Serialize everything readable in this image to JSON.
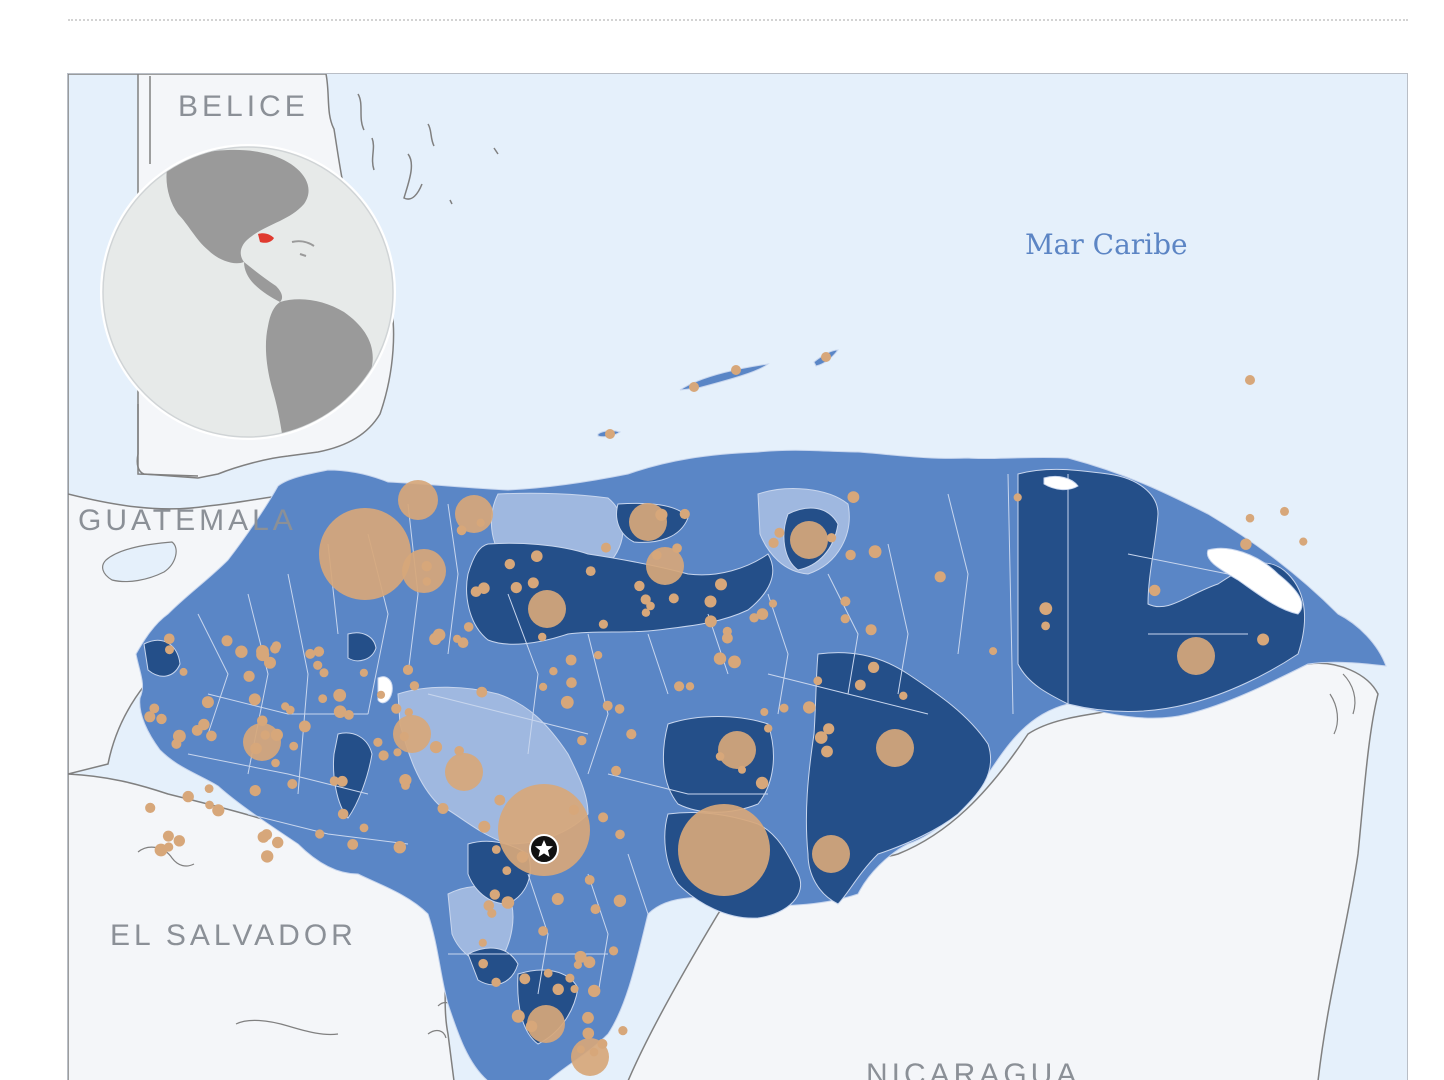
{
  "labels": {
    "belice": "BELICE",
    "guatemala": "GUATEMALA",
    "el_salvador": "EL SALVADOR",
    "nicaragua": "NICARAGUA",
    "sea": "Mar Caribe"
  },
  "legend_colors": {
    "sea": "#e5f0fb",
    "land_neighbors": "#f4f6f9",
    "border_gray": "#7d7d7d",
    "choropleth_light": "#9fb8e0",
    "choropleth_mid": "#5a86c6",
    "choropleth_dark": "#244f89",
    "bubble": "#d7a77a",
    "locator_globe": "#e7eae9",
    "locator_land": "#9a9a9a",
    "locator_highlight": "#e03a2f"
  },
  "icons": {
    "capital": "star-marker-icon",
    "locator": "globe-locator-icon"
  }
}
